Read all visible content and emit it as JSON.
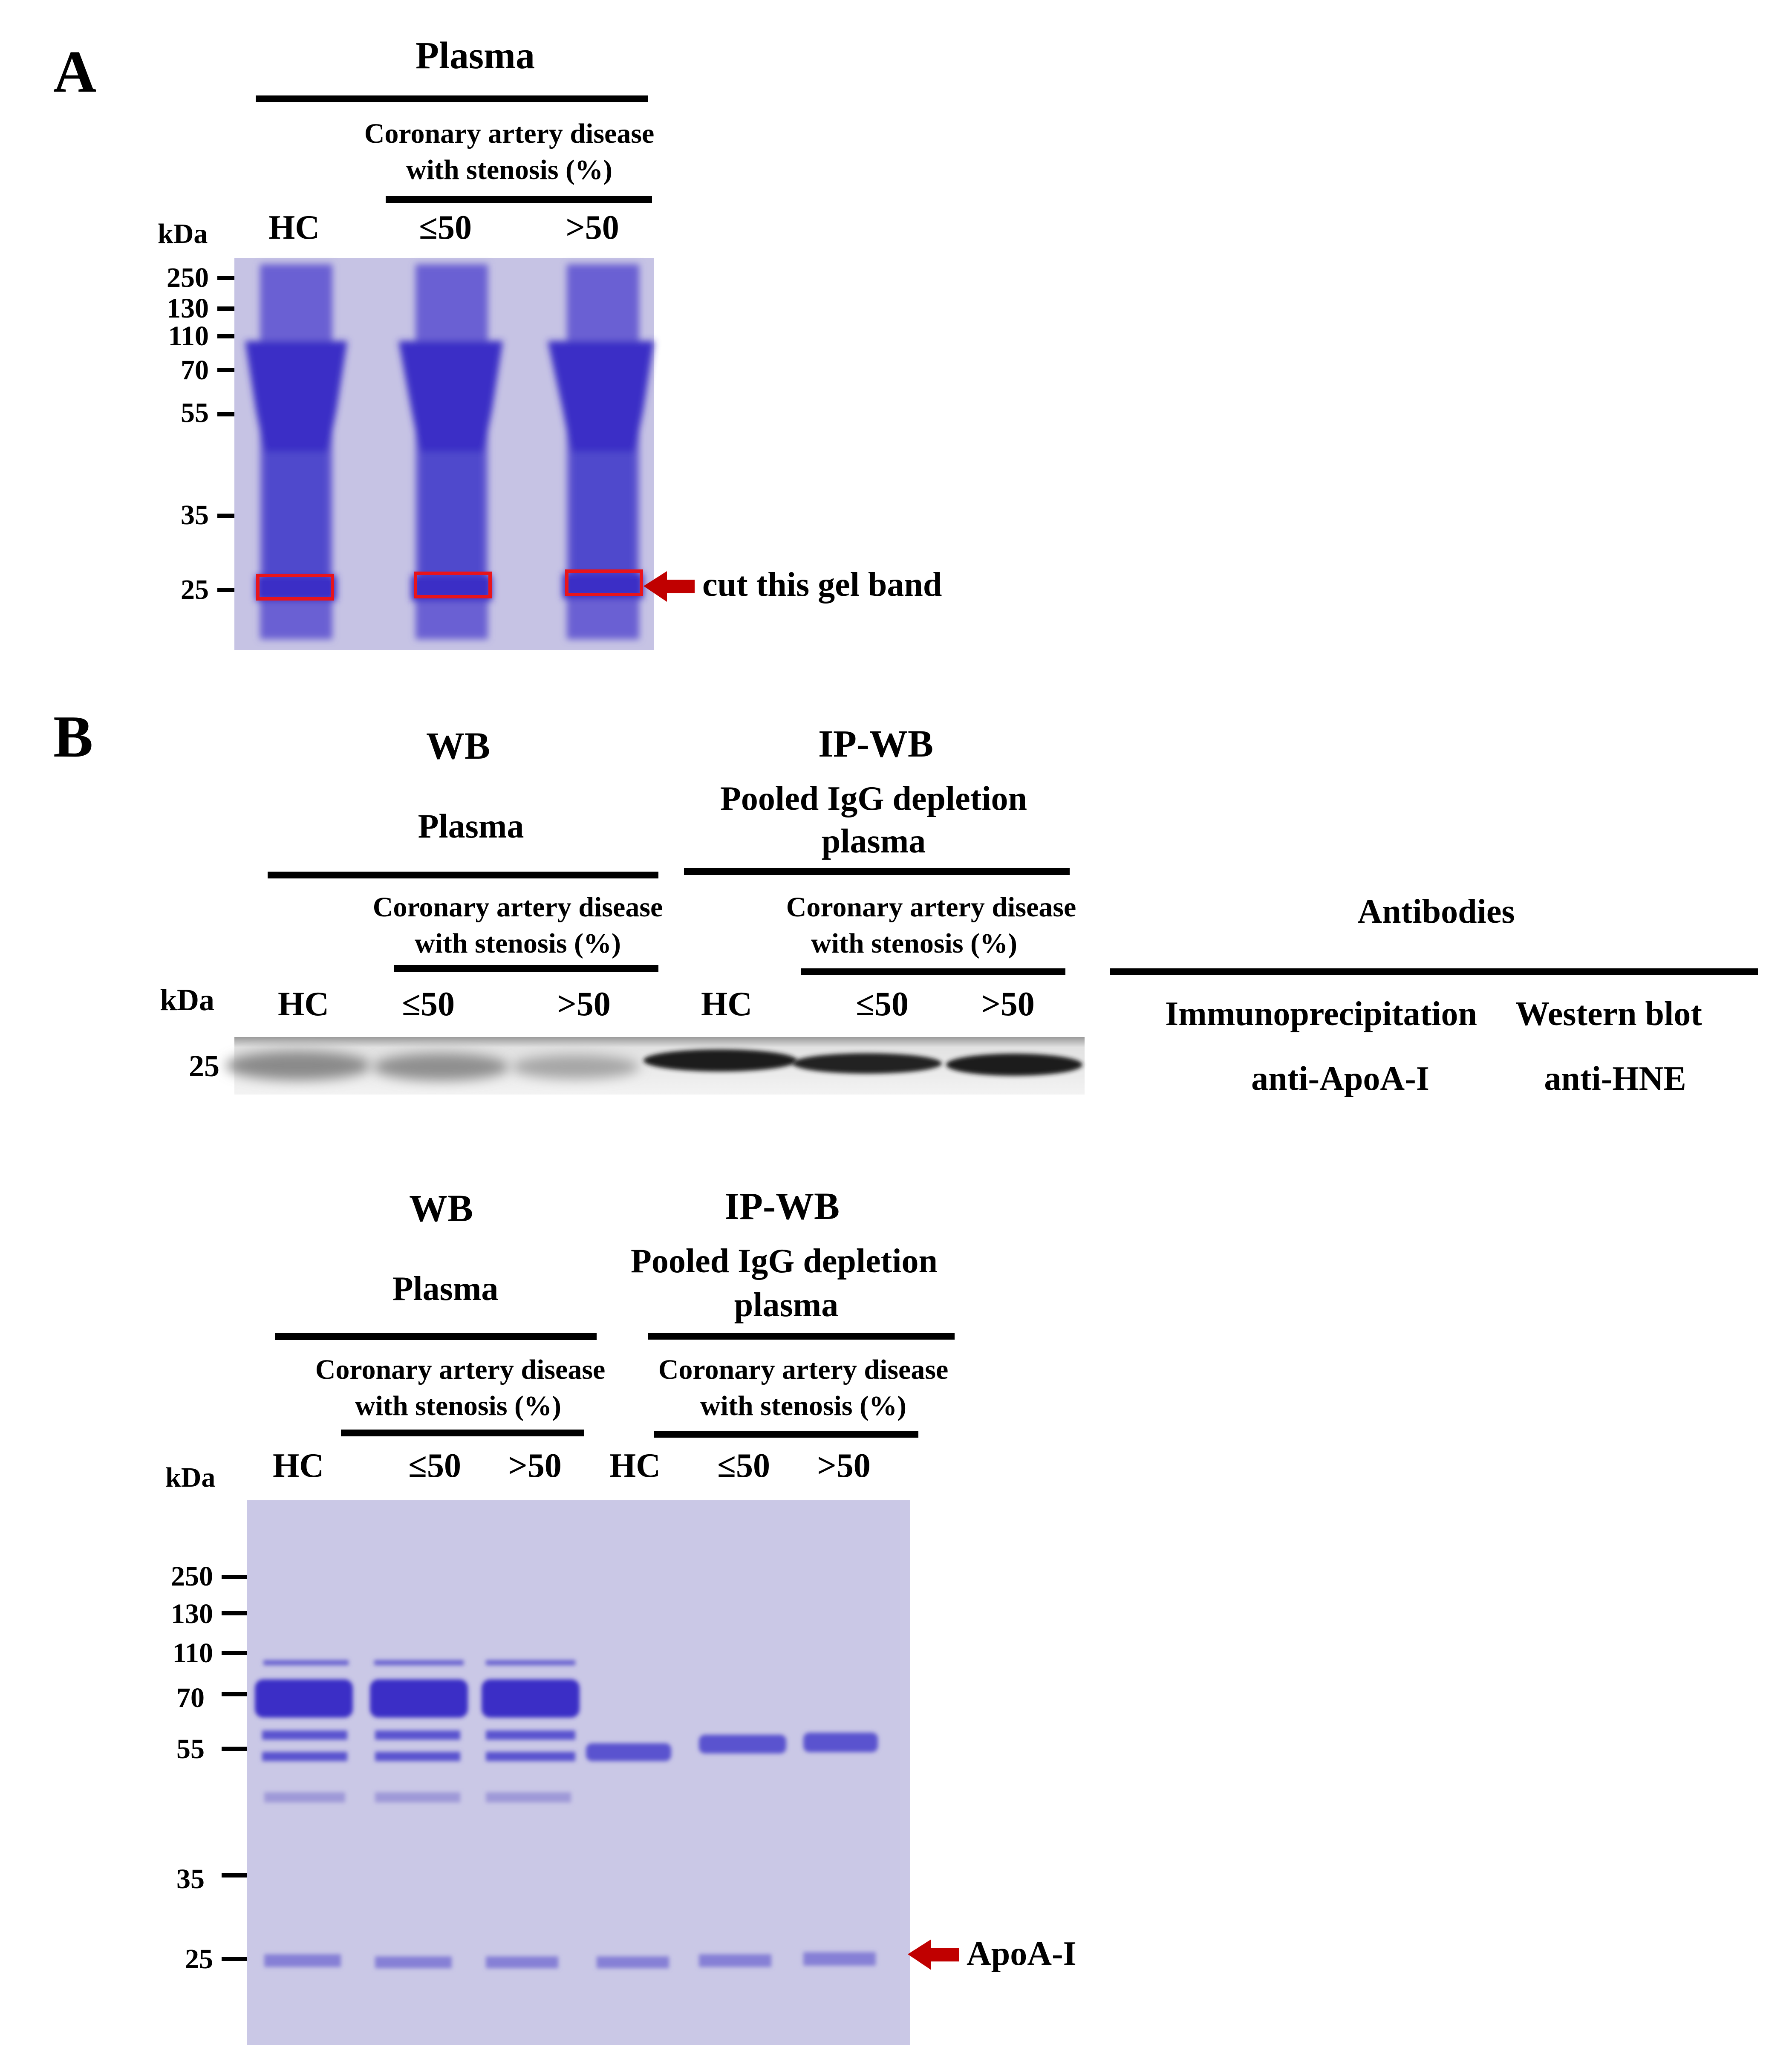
{
  "panelA": {
    "label": "A",
    "sample_title": "Plasma",
    "group_title_line1": "Coronary artery disease",
    "group_title_line2": "with stenosis (%)",
    "kda_label": "kDa",
    "lanes": [
      "HC",
      "≤50",
      ">50"
    ],
    "markers": [
      "250",
      "130",
      "110",
      "70",
      "55",
      "35",
      "25"
    ],
    "annotation": "cut this gel band",
    "box_color": "#e8141b",
    "arrow_color": "#c00000"
  },
  "panelB": {
    "label": "B",
    "top": {
      "wb_title": "WB",
      "wb_sample": "Plasma",
      "ipwb_title": "IP-WB",
      "ipwb_sample_line1": "Pooled IgG depletion",
      "ipwb_sample_line2": "plasma",
      "group_title_line1": "Coronary artery disease",
      "group_title_line2": "with stenosis (%)",
      "kda_label": "kDa",
      "lanes": [
        "HC",
        "≤50",
        ">50",
        "HC",
        "≤50",
        ">50"
      ],
      "marker": "25"
    },
    "antibodies": {
      "title": "Antibodies",
      "col1_header": "Immunoprecipitation",
      "col2_header": "Western blot",
      "col1_value": "anti-ApoA-I",
      "col2_value": "anti-HNE"
    },
    "bottom": {
      "wb_title": "WB",
      "wb_sample": "Plasma",
      "ipwb_title": "IP-WB",
      "ipwb_sample_line1": "Pooled IgG depletion",
      "ipwb_sample_line2": "plasma",
      "group_title_line1": "Coronary artery disease",
      "group_title_line2": "with stenosis (%)",
      "kda_label": "kDa",
      "lanes": [
        "HC",
        "≤50",
        ">50",
        "HC",
        "≤50",
        ">50"
      ],
      "markers": [
        "250",
        "130",
        "110",
        "70",
        "55",
        "35",
        "25"
      ],
      "annotation": "ApoA-I",
      "arrow_color": "#c00000"
    }
  },
  "colors": {
    "gel_background": "#c6c3e4",
    "band_strong": "#3a2fc6",
    "band_medium": "#5a52cf",
    "blot_background": "#ebebeb",
    "blot_band": "#1e1e1e"
  }
}
